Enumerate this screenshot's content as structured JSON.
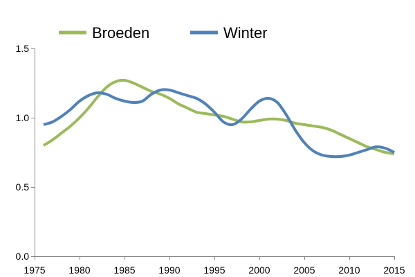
{
  "chart_data": {
    "type": "line",
    "title": "",
    "xlabel": "",
    "ylabel": "",
    "xlim": [
      1975,
      2015
    ],
    "ylim": [
      0.0,
      1.5
    ],
    "x_ticks": [
      "1975",
      "1980",
      "1985",
      "1990",
      "1995",
      "2000",
      "2005",
      "2010",
      "2015"
    ],
    "y_ticks": [
      "0.0",
      "0.5",
      "1.0",
      "1.5"
    ],
    "grid": false,
    "legend_position": "top",
    "series": [
      {
        "name": "Broeden",
        "color": "#9BBB59",
        "x": [
          1976,
          1977,
          1978,
          1979,
          1980,
          1981,
          1982,
          1983,
          1984,
          1985,
          1986,
          1987,
          1988,
          1989,
          1990,
          1991,
          1992,
          1993,
          1994,
          1995,
          1996,
          1997,
          1998,
          1999,
          2000,
          2001,
          2002,
          2003,
          2004,
          2005,
          2006,
          2007,
          2008,
          2009,
          2010,
          2011,
          2012,
          2013,
          2014,
          2015
        ],
        "y": [
          0.8,
          0.84,
          0.89,
          0.94,
          1.0,
          1.07,
          1.15,
          1.22,
          1.26,
          1.27,
          1.25,
          1.22,
          1.19,
          1.17,
          1.14,
          1.1,
          1.07,
          1.04,
          1.03,
          1.02,
          1.01,
          0.99,
          0.97,
          0.97,
          0.98,
          0.99,
          0.99,
          0.98,
          0.96,
          0.95,
          0.94,
          0.93,
          0.91,
          0.88,
          0.85,
          0.82,
          0.79,
          0.77,
          0.75,
          0.74
        ]
      },
      {
        "name": "Winter",
        "color": "#4F81BD",
        "x": [
          1976,
          1977,
          1978,
          1979,
          1980,
          1981,
          1982,
          1983,
          1984,
          1985,
          1986,
          1987,
          1988,
          1989,
          1990,
          1991,
          1992,
          1993,
          1994,
          1995,
          1996,
          1997,
          1998,
          1999,
          2000,
          2001,
          2002,
          2003,
          2004,
          2005,
          2006,
          2007,
          2008,
          2009,
          2010,
          2011,
          2012,
          2013,
          2014,
          2015
        ],
        "y": [
          0.95,
          0.97,
          1.01,
          1.06,
          1.12,
          1.16,
          1.18,
          1.17,
          1.14,
          1.12,
          1.11,
          1.12,
          1.17,
          1.2,
          1.2,
          1.18,
          1.16,
          1.14,
          1.1,
          1.04,
          0.97,
          0.95,
          0.99,
          1.06,
          1.12,
          1.14,
          1.11,
          1.02,
          0.91,
          0.82,
          0.76,
          0.73,
          0.72,
          0.72,
          0.73,
          0.75,
          0.77,
          0.79,
          0.78,
          0.75
        ]
      }
    ]
  }
}
